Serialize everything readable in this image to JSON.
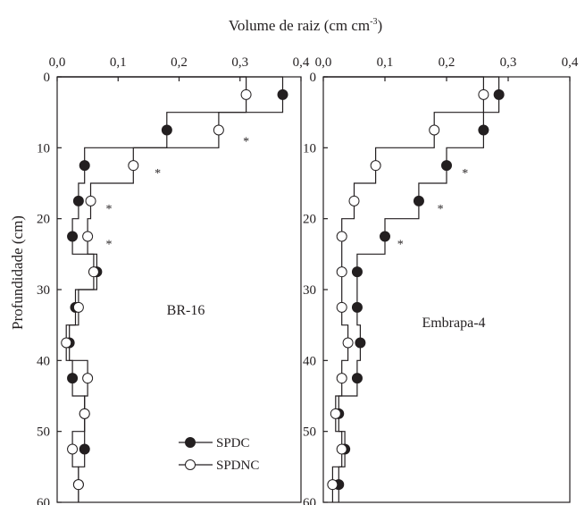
{
  "figure": {
    "top_axis_title": "Volume de raiz (cm cm",
    "top_axis_title_sup": "-3",
    "top_axis_title_end": ")",
    "y_axis_title": "Profundidade (cm)"
  },
  "legend": {
    "items": [
      {
        "label": "SPDC",
        "marker": "filled"
      },
      {
        "label": "SPDNC",
        "marker": "open"
      }
    ]
  },
  "colors": {
    "ink": "#231f20",
    "background": "#ffffff"
  },
  "chart_data": [
    {
      "type": "line",
      "panel_label": "BR-16",
      "x_axis": "Volume de raiz (cm cm-3)",
      "y_axis": "Profundidade (cm)",
      "xlim": [
        0,
        0.4
      ],
      "ylim": [
        60,
        0
      ],
      "x_ticks": [
        "0,0",
        "0,1",
        "0,2",
        "0,3",
        "0,4"
      ],
      "y_ticks": [
        "0",
        "10",
        "20",
        "30",
        "40",
        "50",
        "60"
      ],
      "layer_bounds": [
        0,
        5,
        10,
        15,
        20,
        25,
        30,
        35,
        40,
        45,
        50,
        55,
        60
      ],
      "depth_midpoints": [
        2.5,
        7.5,
        12.5,
        17.5,
        22.5,
        27.5,
        32.5,
        37.5,
        42.5,
        47.5,
        52.5,
        57.5
      ],
      "series": [
        {
          "name": "SPDC",
          "marker": "filled",
          "values": [
            0.37,
            0.18,
            0.045,
            0.035,
            0.025,
            0.065,
            0.03,
            0.02,
            0.025,
            0.045,
            0.045,
            0.035
          ]
        },
        {
          "name": "SPDNC",
          "marker": "open",
          "values": [
            0.31,
            0.265,
            0.125,
            0.055,
            0.05,
            0.06,
            0.035,
            0.015,
            0.05,
            0.045,
            0.025,
            0.035
          ]
        }
      ],
      "significance": [
        {
          "depth": 9,
          "x": 0.31,
          "text": "*"
        },
        {
          "depth": 13.5,
          "x": 0.165,
          "text": "*"
        },
        {
          "depth": 18.5,
          "x": 0.085,
          "text": "*"
        },
        {
          "depth": 23.5,
          "x": 0.085,
          "text": "*"
        }
      ]
    },
    {
      "type": "line",
      "panel_label": "Embrapa-4",
      "x_axis": "Volume de raiz (cm cm-3)",
      "y_axis": "Profundidade (cm)",
      "xlim": [
        0,
        0.4
      ],
      "ylim": [
        60,
        0
      ],
      "x_ticks": [
        "0,0",
        "0,1",
        "0,2",
        "0,3",
        "0,4"
      ],
      "y_ticks": [
        "0",
        "10",
        "20",
        "30",
        "40",
        "50",
        "60"
      ],
      "layer_bounds": [
        0,
        5,
        10,
        15,
        20,
        25,
        30,
        35,
        40,
        45,
        50,
        55,
        60
      ],
      "depth_midpoints": [
        2.5,
        7.5,
        12.5,
        17.5,
        22.5,
        27.5,
        32.5,
        37.5,
        42.5,
        47.5,
        52.5,
        57.5
      ],
      "series": [
        {
          "name": "SPDC",
          "marker": "filled",
          "values": [
            0.285,
            0.26,
            0.2,
            0.155,
            0.1,
            0.055,
            0.055,
            0.06,
            0.055,
            0.025,
            0.035,
            0.025
          ]
        },
        {
          "name": "SPDNC",
          "marker": "open",
          "values": [
            0.26,
            0.18,
            0.085,
            0.05,
            0.03,
            0.03,
            0.03,
            0.04,
            0.03,
            0.02,
            0.03,
            0.015
          ]
        }
      ],
      "significance": [
        {
          "depth": 13.5,
          "x": 0.23,
          "text": "*"
        },
        {
          "depth": 18.5,
          "x": 0.19,
          "text": "*"
        },
        {
          "depth": 23.5,
          "x": 0.125,
          "text": "*"
        }
      ]
    }
  ]
}
